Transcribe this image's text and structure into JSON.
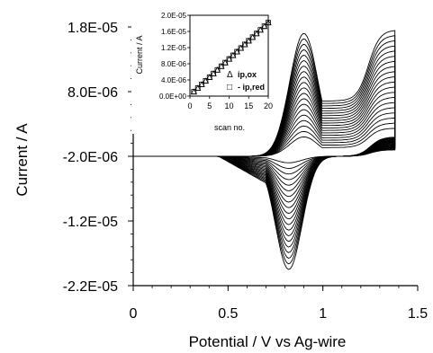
{
  "chart_data": [
    {
      "type": "line",
      "panel": "main",
      "xlabel": "Potential / V vs Ag-wire",
      "ylabel": "Current / A",
      "xlim": [
        0,
        1.5
      ],
      "ylim": [
        -2.2e-05,
        1.8e-05
      ],
      "x_ticks": [
        "0",
        "0.5",
        "1",
        "1.5"
      ],
      "y_ticks": [
        "1.8E-05",
        "8.0E-06",
        "-2.0E-06",
        "-1.2E-05",
        "-2.2E-05"
      ],
      "grid": false,
      "series_description": "20 successive cyclic voltammetry scans; each scan forward from 0 V to ~1.38 V and back",
      "scans": 20,
      "anodic_peak": {
        "potential": 0.9,
        "current_first_scan": 1e-06,
        "current_last_scan": 1.7e-05
      },
      "cathodic_peak": {
        "potential": 0.82,
        "current_first_scan": -3e-06,
        "current_last_scan": -1.95e-05
      },
      "baseline_current": -2e-06
    },
    {
      "type": "scatter",
      "panel": "inset",
      "xlabel": "scan no.",
      "ylabel": "Current / A",
      "xlim": [
        0,
        20
      ],
      "ylim": [
        0,
        2e-05
      ],
      "x_ticks": [
        "0",
        "5",
        "10",
        "15",
        "20"
      ],
      "y_ticks": [
        "0.0E+00",
        "4.0E-06",
        "8.0E-06",
        "1.2E-05",
        "1.6E-05",
        "2.0E-05"
      ],
      "legend": [
        {
          "marker": "Δ",
          "label": "ip,ox"
        },
        {
          "marker": "□",
          "label": "- ip,red"
        }
      ],
      "legend_placement": "bottom-right",
      "series": [
        {
          "name": "ip,ox",
          "marker": "triangle",
          "x": [
            1,
            2,
            3,
            4,
            5,
            6,
            7,
            8,
            9,
            10,
            11,
            12,
            13,
            14,
            15,
            16,
            17,
            18,
            19,
            20
          ],
          "y": [
            1e-06,
            1.9e-06,
            2.8e-06,
            3.7e-06,
            4.6e-06,
            5.5e-06,
            6.4e-06,
            7.3e-06,
            8.2e-06,
            9.1e-06,
            1e-05,
            1.09e-05,
            1.18e-05,
            1.27e-05,
            1.36e-05,
            1.45e-05,
            1.54e-05,
            1.63e-05,
            1.72e-05,
            1.81e-05
          ]
        },
        {
          "name": "- ip,red",
          "marker": "square",
          "x": [
            1,
            2,
            3,
            4,
            5,
            6,
            7,
            8,
            9,
            10,
            11,
            12,
            13,
            14,
            15,
            16,
            17,
            18,
            19,
            20
          ],
          "y": [
            1.1e-06,
            2e-06,
            2.9e-06,
            3.8e-06,
            4.7e-06,
            5.6e-06,
            6.5e-06,
            7.4e-06,
            8.3e-06,
            9.2e-06,
            1.01e-05,
            1.1e-05,
            1.19e-05,
            1.28e-05,
            1.37e-05,
            1.46e-05,
            1.55e-05,
            1.64e-05,
            1.73e-05,
            1.82e-05
          ]
        }
      ]
    }
  ]
}
